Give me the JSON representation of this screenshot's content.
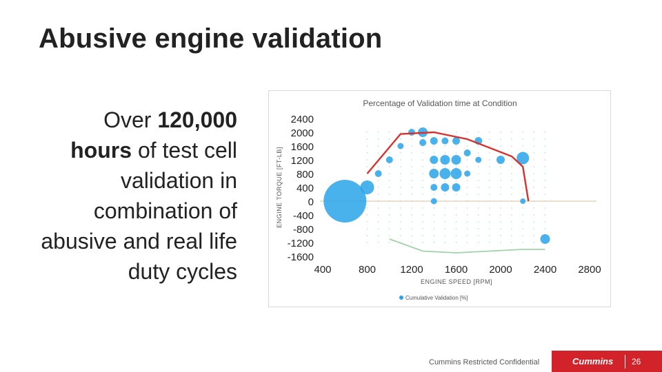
{
  "slide": {
    "title": "Abusive engine validation",
    "body_pre": "Over ",
    "body_bold1": "120,000",
    "body_bold2": "hours",
    "body_post": " of test cell validation in combination of abusive and real life duty cycles",
    "footer": "Cummins Restricted Confidential",
    "logo": "Cummins",
    "page_number": "26",
    "colors": {
      "brand_red": "#d2232a",
      "bubble_blue": "#29a3e8",
      "limit_red": "#d9302c",
      "lower_green": "#9fd3a9"
    }
  },
  "chart_data": {
    "type": "scatter",
    "title": "Percentage of Validation time at Condition",
    "xlabel": "ENGINE SPEED [RPM]",
    "ylabel": "ENGINE TORQUE [FT-LB]",
    "x_ticks": [
      "400",
      "800",
      "1200",
      "1600",
      "2000",
      "2400",
      "2800"
    ],
    "y_ticks": [
      "2400",
      "2000",
      "1600",
      "1200",
      "800",
      "400",
      "0",
      "-400",
      "-800",
      "-1200",
      "-1600"
    ],
    "xlim": [
      400,
      2800
    ],
    "ylim": [
      -1600,
      2400
    ],
    "legend": "Cumulative Validation [%]",
    "legend_position": "bottom",
    "series": [
      {
        "name": "Cumulative Validation [%]",
        "points": [
          {
            "x": 600,
            "y": 0,
            "size": 62
          },
          {
            "x": 800,
            "y": 400,
            "size": 20
          },
          {
            "x": 900,
            "y": 800,
            "size": 10
          },
          {
            "x": 1000,
            "y": 1200,
            "size": 10
          },
          {
            "x": 1100,
            "y": 1600,
            "size": 9
          },
          {
            "x": 1200,
            "y": 2000,
            "size": 10
          },
          {
            "x": 1300,
            "y": 2000,
            "size": 14
          },
          {
            "x": 1300,
            "y": 1700,
            "size": 10
          },
          {
            "x": 1400,
            "y": 1750,
            "size": 11
          },
          {
            "x": 1400,
            "y": 1200,
            "size": 12
          },
          {
            "x": 1400,
            "y": 800,
            "size": 14
          },
          {
            "x": 1400,
            "y": 400,
            "size": 10
          },
          {
            "x": 1400,
            "y": 0,
            "size": 9
          },
          {
            "x": 1500,
            "y": 1750,
            "size": 10
          },
          {
            "x": 1500,
            "y": 1200,
            "size": 14
          },
          {
            "x": 1500,
            "y": 800,
            "size": 16
          },
          {
            "x": 1500,
            "y": 400,
            "size": 12
          },
          {
            "x": 1600,
            "y": 1750,
            "size": 11
          },
          {
            "x": 1600,
            "y": 1200,
            "size": 14
          },
          {
            "x": 1600,
            "y": 800,
            "size": 16
          },
          {
            "x": 1600,
            "y": 400,
            "size": 12
          },
          {
            "x": 1700,
            "y": 1400,
            "size": 10
          },
          {
            "x": 1700,
            "y": 800,
            "size": 9
          },
          {
            "x": 1800,
            "y": 1750,
            "size": 11
          },
          {
            "x": 1800,
            "y": 1200,
            "size": 9
          },
          {
            "x": 2000,
            "y": 1200,
            "size": 12
          },
          {
            "x": 2200,
            "y": 1250,
            "size": 18
          },
          {
            "x": 2200,
            "y": 0,
            "size": 8
          },
          {
            "x": 2400,
            "y": -1100,
            "size": 14
          }
        ]
      }
    ],
    "limit_line": [
      [
        800,
        800
      ],
      [
        1100,
        1950
      ],
      [
        1400,
        2000
      ],
      [
        1700,
        1800
      ],
      [
        2100,
        1300
      ],
      [
        2200,
        1000
      ],
      [
        2250,
        0
      ]
    ],
    "lower_curve": [
      [
        1000,
        -1100
      ],
      [
        1300,
        -1450
      ],
      [
        1600,
        -1500
      ],
      [
        1900,
        -1450
      ],
      [
        2200,
        -1400
      ],
      [
        2400,
        -1400
      ]
    ],
    "zero_line": true
  }
}
